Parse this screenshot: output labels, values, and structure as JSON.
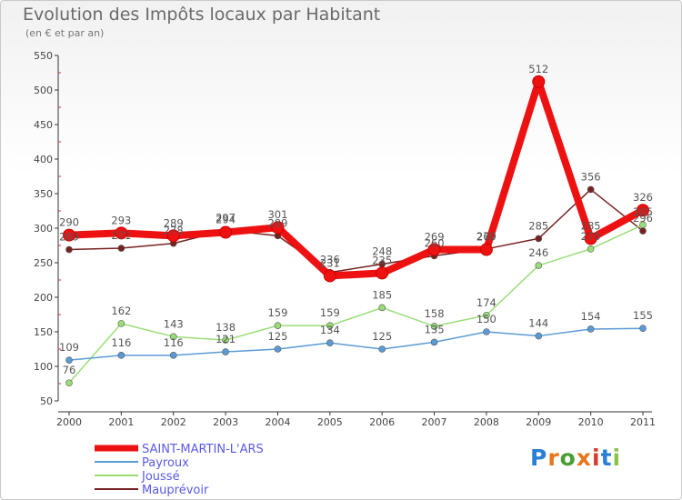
{
  "logo": {
    "text": "Proxiti",
    "colors": [
      "#2a7fd4",
      "#e8761c",
      "#4a9e35",
      "#e8761c",
      "#d93b2c",
      "#2a7fd4",
      "#8bc34a"
    ]
  },
  "chart_data": {
    "type": "line",
    "title": "Evolution des Impôts locaux par Habitant",
    "subtitle": "(en € et par an)",
    "xlabel": "",
    "ylabel": "",
    "ylim": [
      50,
      550
    ],
    "yticks": [
      50,
      100,
      150,
      200,
      250,
      300,
      350,
      400,
      450,
      500,
      550
    ],
    "categories": [
      "2000",
      "2001",
      "2002",
      "2003",
      "2004",
      "2005",
      "2006",
      "2007",
      "2008",
      "2009",
      "2010",
      "2011"
    ],
    "grid": false,
    "legend_position": "bottom-left",
    "series": [
      {
        "name": "SAINT-MARTIN-L'ARS",
        "color": "#ee1111",
        "values": [
          290,
          293,
          289,
          294,
          301,
          231,
          235,
          269,
          269,
          512,
          285,
          326
        ]
      },
      {
        "name": "Payroux",
        "color": "#5b9bd5",
        "values": [
          109,
          116,
          116,
          121,
          125,
          134,
          125,
          135,
          150,
          144,
          154,
          155
        ]
      },
      {
        "name": "Joussé",
        "color": "#99dd77",
        "values": [
          76,
          162,
          143,
          138,
          159,
          159,
          185,
          158,
          174,
          246,
          270,
          305
        ]
      },
      {
        "name": "Mauprévoir",
        "color": "#772222",
        "values": [
          269,
          271,
          278,
          297,
          289,
          236,
          248,
          260,
          270,
          285,
          356,
          296
        ]
      }
    ],
    "annotations": [
      {
        "series": "SAINT-MARTIN-L'ARS",
        "labels": [
          "290",
          "293",
          "289",
          "294",
          "301",
          "231",
          "235",
          "269",
          "269",
          "512",
          "285",
          "326"
        ]
      },
      {
        "series": "Payroux",
        "labels": [
          "109",
          "116",
          "116",
          "121",
          "125",
          "134",
          "125",
          "135",
          "150",
          "144",
          "154",
          "155"
        ]
      },
      {
        "series": "Joussé",
        "labels": [
          "76",
          "162",
          "143",
          "138",
          "159",
          "159",
          "185",
          "158",
          "174",
          "246",
          "270",
          "305"
        ]
      },
      {
        "series": "Mauprévoir",
        "labels": [
          "269",
          "271",
          "278",
          "297",
          "289",
          "236",
          "248",
          "260",
          "270",
          "285",
          "356",
          "296"
        ]
      }
    ]
  }
}
